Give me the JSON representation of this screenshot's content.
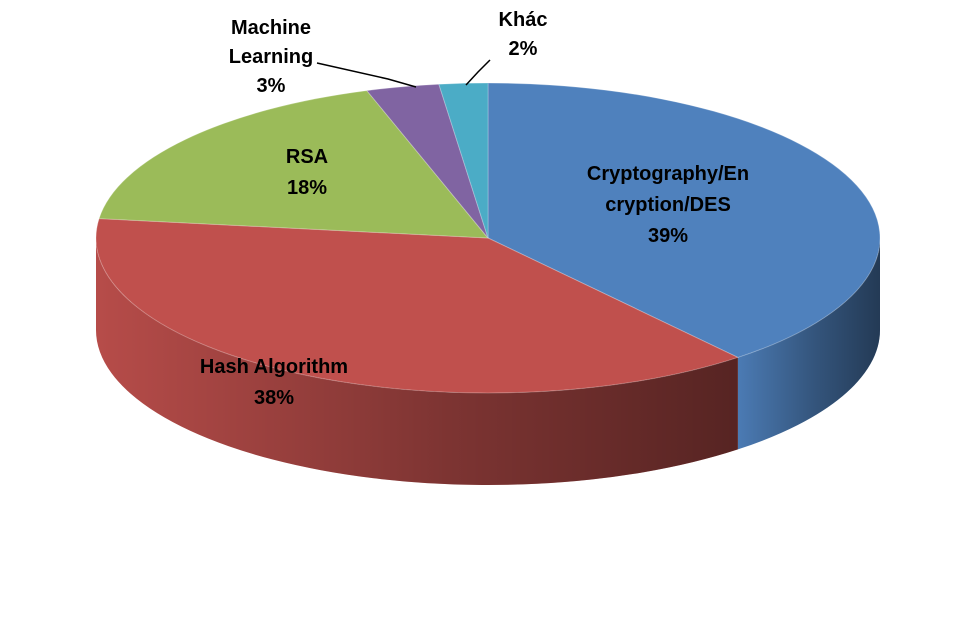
{
  "chart_data": {
    "type": "pie",
    "style": "3d",
    "title": "",
    "slices": [
      {
        "label_lines": [
          "Cryptography/En",
          "cryption/DES"
        ],
        "value": 39,
        "value_label": "39%",
        "color": "#4F81BD",
        "side_color": "#1F3350"
      },
      {
        "label_lines": [
          "Hash Algorithm"
        ],
        "value": 38,
        "value_label": "38%",
        "color": "#C0504D",
        "side_color": "#7A2E2C"
      },
      {
        "label_lines": [
          "RSA"
        ],
        "value": 18,
        "value_label": "18%",
        "color": "#9BBB59",
        "side_color": "#5E7535"
      },
      {
        "label_lines": [
          "Machine",
          "Learning"
        ],
        "value": 3,
        "value_label": "3%",
        "color": "#8064A2",
        "side_color": "#4B3A62"
      },
      {
        "label_lines": [
          "Khác"
        ],
        "value": 2,
        "value_label": "2%",
        "color": "#4BACC6",
        "side_color": "#2A6A7C"
      }
    ],
    "legend": "none",
    "data_labels": "category and percent"
  }
}
